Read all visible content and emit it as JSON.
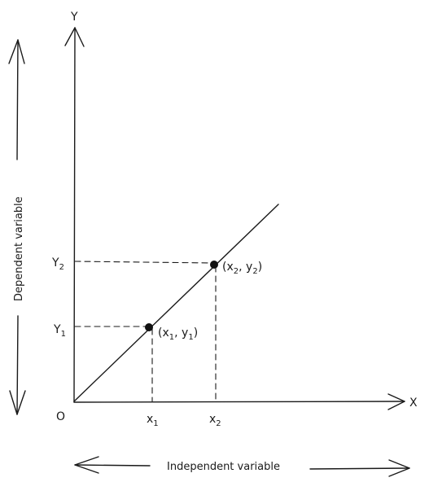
{
  "axes": {
    "y_label": "Y",
    "x_label": "X",
    "origin_label": "O"
  },
  "ticks": {
    "y1": {
      "base": "Y",
      "sub": "1"
    },
    "y2": {
      "base": "Y",
      "sub": "2"
    },
    "x1": {
      "base": "x",
      "sub": "1"
    },
    "x2": {
      "base": "x",
      "sub": "2"
    }
  },
  "points": {
    "p1": {
      "open": "(x",
      "sub1": "1",
      "mid": ", y",
      "sub2": "1",
      "close": ")"
    },
    "p2": {
      "open": "(x",
      "sub1": "2",
      "mid": ", y",
      "sub2": "2",
      "close": ")"
    }
  },
  "captions": {
    "dependent": "Dependent variable",
    "independent": "Independent variable"
  }
}
